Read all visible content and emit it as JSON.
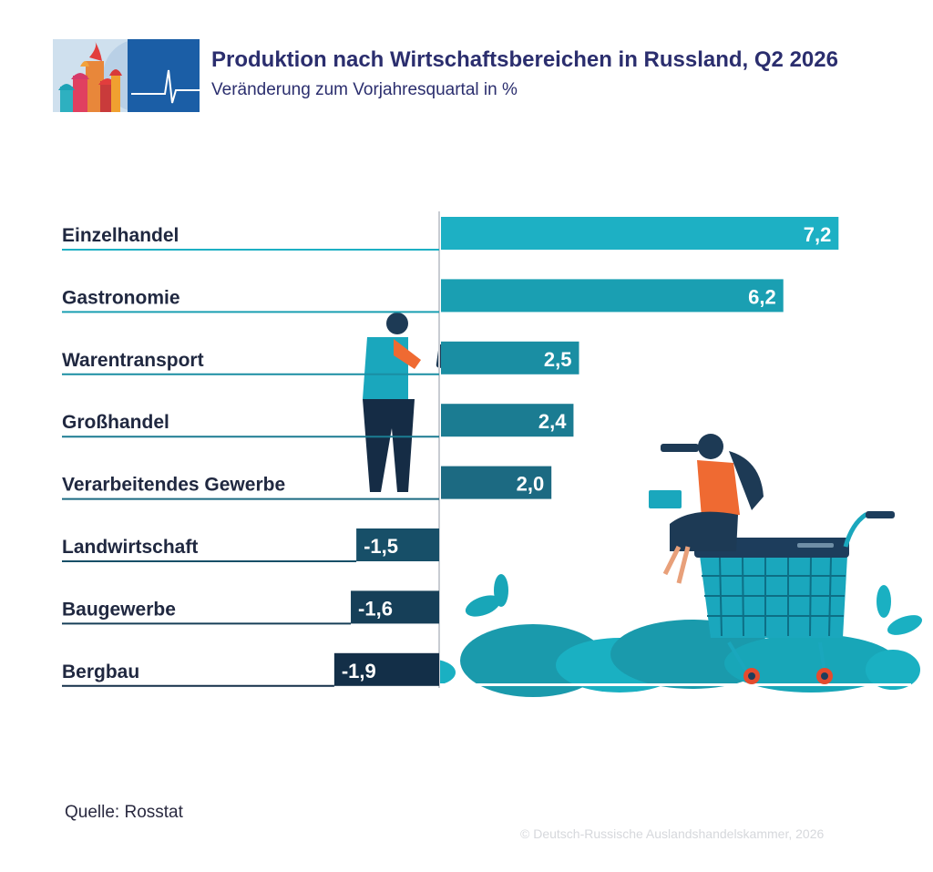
{
  "header": {
    "title": "Produktion nach Wirtschaftsbereichen in Russland, Q2 2026",
    "subtitle": "Veränderung zum Vorjahresquartal in %"
  },
  "footer": {
    "source": "Quelle: Rosstat",
    "copyright": "© Deutsch-Russische Auslandshandelskammer, 2026"
  },
  "chart_data": {
    "type": "bar",
    "orientation": "horizontal",
    "title": "Produktion nach Wirtschaftsbereichen in Russland, Q2 2026",
    "subtitle": "Veränderung zum Vorjahresquartal in %",
    "categories": [
      "Einzelhandel",
      "Gastronomie",
      "Warentransport",
      "Großhandel",
      "Verarbeitendes Gewerbe",
      "Landwirtschaft",
      "Baugewerbe",
      "Bergbau"
    ],
    "values": [
      7.2,
      6.2,
      2.5,
      2.4,
      2.0,
      -1.5,
      -1.6,
      -1.9
    ],
    "value_labels": [
      "7,2",
      "6,2",
      "2,5",
      "2,4",
      "2,0",
      "-1,5",
      "-1,6",
      "-1,9"
    ],
    "bar_colors": [
      "#1db0c4",
      "#1a9fb2",
      "#1a8ea3",
      "#1b7c92",
      "#1c6a82",
      "#174f68",
      "#163f58",
      "#132f48"
    ],
    "xlim": [
      -2.0,
      7.7
    ],
    "grid": false,
    "legend": "none"
  }
}
